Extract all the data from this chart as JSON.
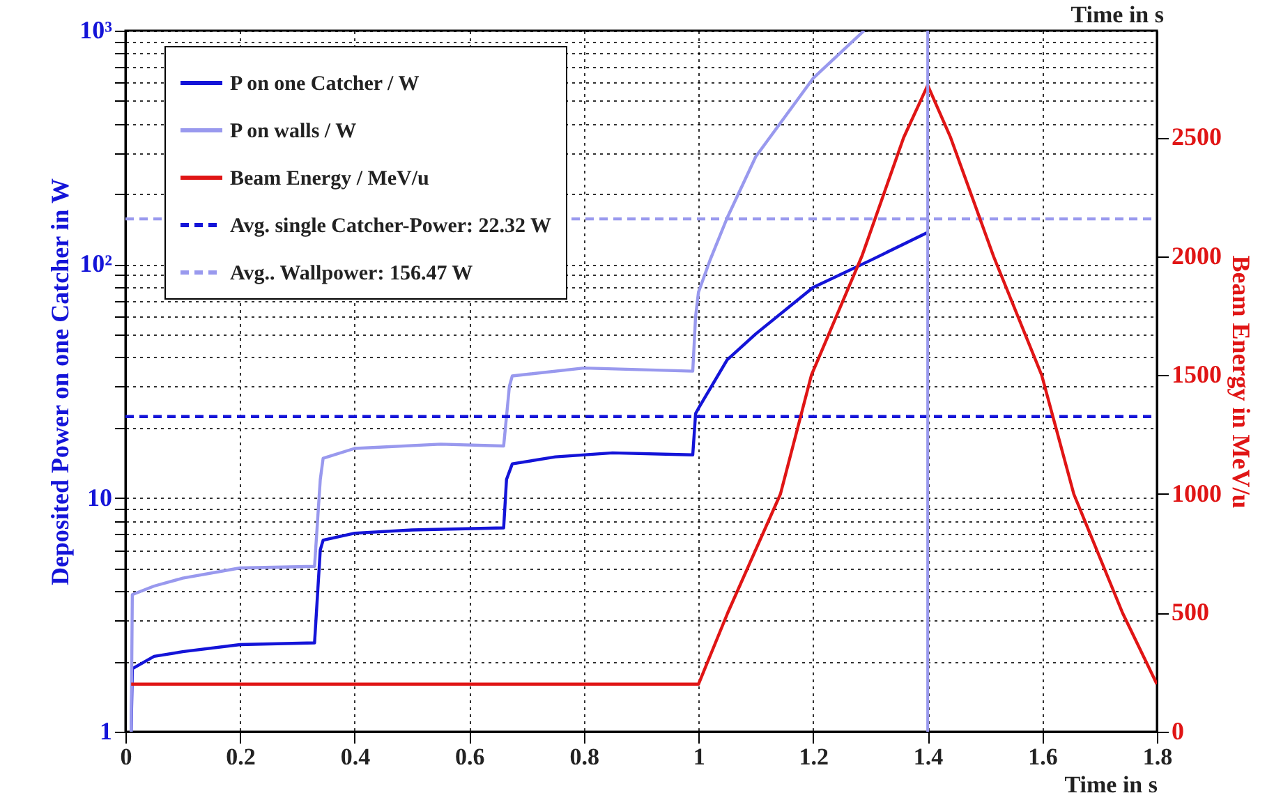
{
  "chart_data": {
    "type": "line",
    "xlabel": "Time in s",
    "ylabel": "Deposited Power on one Catcher in W",
    "y2label": "Beam Energy in MeV/u",
    "annotations": [
      "Time in s"
    ],
    "xlim": [
      0,
      1.8
    ],
    "xticks": [
      0,
      0.2,
      0.4,
      0.6,
      0.8,
      1,
      1.2,
      1.4,
      1.6,
      1.8
    ],
    "ylim": [
      1,
      1000
    ],
    "yticks": [
      1,
      {
        "value": 2,
        "label": null
      },
      {
        "value": 3,
        "label": null
      },
      {
        "value": 4,
        "label": null
      },
      {
        "value": 5,
        "label": null
      },
      {
        "value": 6,
        "label": null
      },
      {
        "value": 7,
        "label": null
      },
      {
        "value": 8,
        "label": null
      },
      {
        "value": 9,
        "label": null
      },
      10,
      {
        "value": 20,
        "label": null
      },
      {
        "value": 30,
        "label": null
      },
      {
        "value": 40,
        "label": null
      },
      {
        "value": 50,
        "label": null
      },
      {
        "value": 60,
        "label": null
      },
      {
        "value": 70,
        "label": null
      },
      {
        "value": 80,
        "label": null
      },
      {
        "value": 90,
        "label": null
      },
      {
        "value": 100,
        "label": "10²"
      },
      {
        "value": 200,
        "label": null
      },
      {
        "value": 300,
        "label": null
      },
      {
        "value": 400,
        "label": null
      },
      {
        "value": 500,
        "label": null
      },
      {
        "value": 600,
        "label": null
      },
      {
        "value": 700,
        "label": null
      },
      {
        "value": 800,
        "label": null
      },
      {
        "value": 900,
        "label": null
      },
      {
        "value": 1000,
        "label": "10³"
      }
    ],
    "y2lim": [
      0,
      2950
    ],
    "y2ticks": [
      0,
      500,
      1000,
      1500,
      2000,
      2500
    ],
    "log": "y",
    "grid": true,
    "legend": "top left",
    "series": [
      {
        "name": "P on one Catcher / W",
        "color": "#1414d8",
        "line_style": "solid",
        "x": [
          0.01,
          0.012,
          0.05,
          0.1,
          0.2,
          0.33,
          0.34,
          0.345,
          0.4,
          0.5,
          0.66,
          0.665,
          0.675,
          0.75,
          0.85,
          0.99,
          0.995,
          1.0,
          1.05,
          1.1,
          1.2,
          1.3,
          1.4
        ],
        "values": [
          1,
          1.86,
          2.1,
          2.2,
          2.36,
          2.4,
          6.0,
          6.6,
          7.07,
          7.3,
          7.45,
          12,
          14.0,
          15.0,
          15.6,
          15.3,
          23,
          24.2,
          39,
          50.4,
          79.6,
          104,
          137
        ]
      },
      {
        "name": "P on walls / W",
        "color": "#9999ee",
        "line_style": "solid",
        "x": [
          0.01,
          0.012,
          0.05,
          0.1,
          0.2,
          0.33,
          0.34,
          0.345,
          0.4,
          0.55,
          0.66,
          0.67,
          0.675,
          0.8,
          0.99,
          0.995,
          1.0,
          1.02,
          1.05,
          1.1,
          1.2,
          1.289
        ],
        "values": [
          1,
          3.86,
          4.2,
          4.54,
          5.02,
          5.1,
          12,
          14.8,
          16.3,
          17.0,
          16.7,
          30,
          33.3,
          36.0,
          34.9,
          60,
          76,
          104,
          158,
          289,
          625,
          1000
        ]
      },
      {
        "name": "Beam Energy / MeV/u",
        "color": "#e01515",
        "line_style": "solid",
        "axis": "y2",
        "x": [
          0.01,
          1.0,
          1.051,
          1.143,
          1.197,
          1.285,
          1.358,
          1.4,
          1.44,
          1.515,
          1.599,
          1.655,
          1.74,
          1.8
        ],
        "values": [
          200,
          200,
          500,
          1000,
          1500,
          2000,
          2500,
          2720,
          2500,
          2000,
          1500,
          1000,
          500,
          200
        ]
      },
      {
        "name": "Avg. single Catcher-Power: 22.32 W",
        "color": "#1414d8",
        "line_style": "dashed",
        "x": [
          0,
          1.8
        ],
        "values": [
          22.32,
          22.32
        ]
      },
      {
        "name": "Avg.. Wallpower: 156.47 W",
        "color": "#9999ee",
        "line_style": "dashed",
        "x": [
          0,
          1.8
        ],
        "values": [
          156.47,
          156.47
        ]
      }
    ],
    "ref_lines": [
      {
        "axis": "x",
        "value": 1.4,
        "color": "#9999ee"
      }
    ]
  }
}
